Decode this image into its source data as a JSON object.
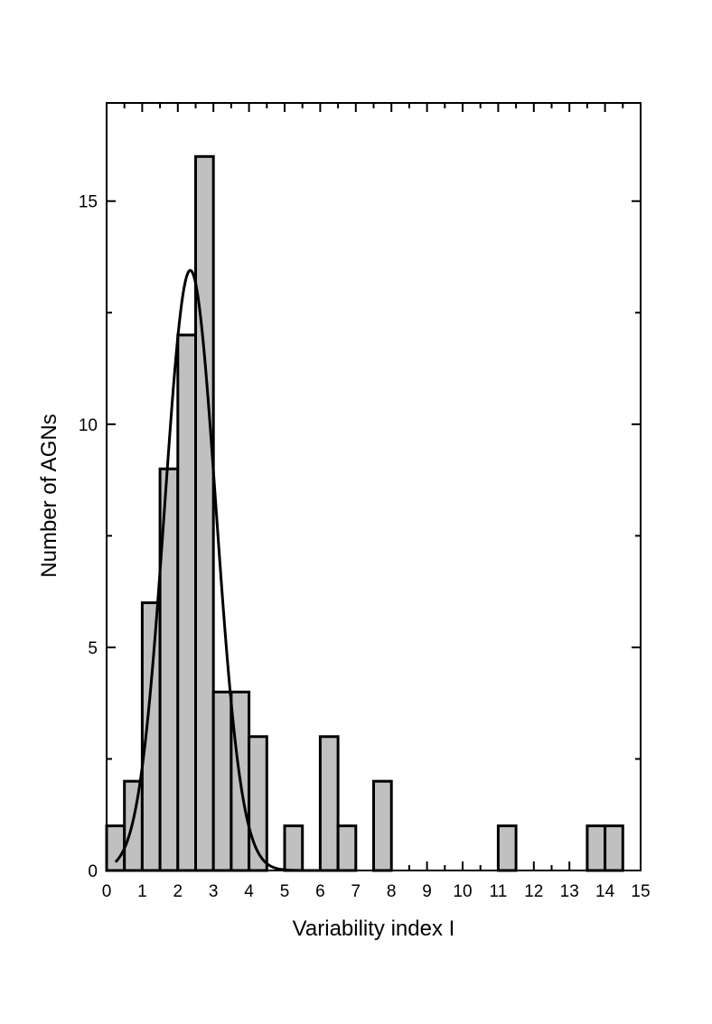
{
  "chart_data": {
    "type": "bar",
    "xlabel": "Variability index I",
    "ylabel": "Number of AGNs",
    "xlim": [
      0,
      15
    ],
    "ylim": [
      0,
      17.2
    ],
    "bin_width": 0.5,
    "bar_color": "#c0c0c0",
    "edge_color": "#000000",
    "x_ticks": [
      "0",
      "1",
      "2",
      "3",
      "4",
      "5",
      "6",
      "7",
      "8",
      "9",
      "10",
      "11",
      "12",
      "13",
      "14",
      "15"
    ],
    "y_ticks": [
      "0",
      "5",
      "10",
      "15"
    ],
    "bins": [
      {
        "x": 0.25,
        "count": 1
      },
      {
        "x": 0.75,
        "count": 2
      },
      {
        "x": 1.25,
        "count": 6
      },
      {
        "x": 1.75,
        "count": 9
      },
      {
        "x": 2.25,
        "count": 12
      },
      {
        "x": 2.75,
        "count": 16
      },
      {
        "x": 3.25,
        "count": 4
      },
      {
        "x": 3.75,
        "count": 4
      },
      {
        "x": 4.25,
        "count": 3
      },
      {
        "x": 5.25,
        "count": 1
      },
      {
        "x": 6.25,
        "count": 3
      },
      {
        "x": 6.75,
        "count": 1
      },
      {
        "x": 7.75,
        "count": 2
      },
      {
        "x": 11.25,
        "count": 1
      },
      {
        "x": 13.75,
        "count": 1
      },
      {
        "x": 14.25,
        "count": 1
      }
    ],
    "fit": {
      "type": "gaussian",
      "amplitude": 13.45,
      "center": 2.35,
      "sigma": 0.72,
      "x_range": [
        0.25,
        7.0
      ]
    },
    "grid": false,
    "legend": "none"
  }
}
